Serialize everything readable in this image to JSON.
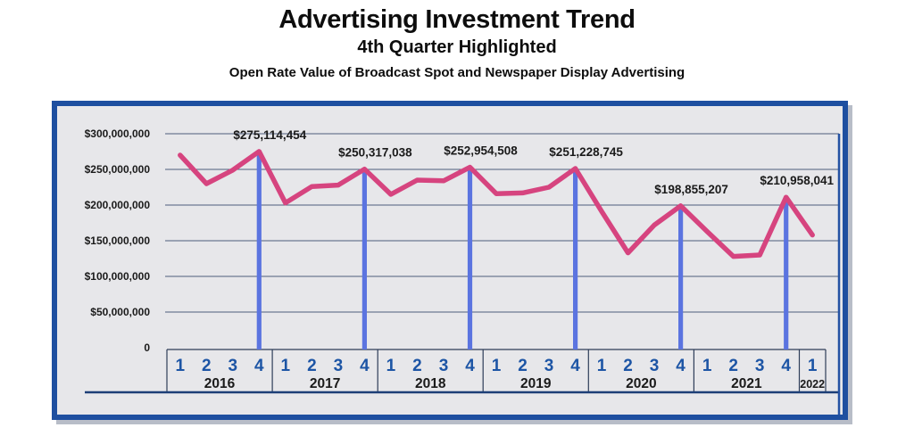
{
  "header": {
    "title": "Advertising Investment Trend",
    "subtitle": "4th Quarter Highlighted",
    "description": "Open Rate Value of Broadcast Spot and Newspaper Display Advertising"
  },
  "colors": {
    "line": "#d6447f",
    "q4_bar": "#5b74e0",
    "panel_border": "#1e4fa0",
    "panel_bg": "#e7e7ea",
    "gridline": "#4d5c7c",
    "axis_box_border": "#2e3d58",
    "baseline": "#1d3f77",
    "right_border": "#2452a3",
    "quarter_text": "#1d55a5",
    "year_text": "#1a1a1a",
    "tick_text": "#1a1a1a",
    "label_text": "#1a1a1a"
  },
  "chart_data": {
    "type": "line",
    "title": "Advertising Investment Trend",
    "subtitle": "4th Quarter Highlighted",
    "xlabel": "",
    "ylabel": "",
    "ylim": [
      0,
      300000000
    ],
    "grid": true,
    "legend": false,
    "highlighted_quarter": "4",
    "y_axis": {
      "ticks": [
        {
          "label": "$300,000,000",
          "value": 300000000
        },
        {
          "label": "$250,000,000",
          "value": 250000000
        },
        {
          "label": "$200,000,000",
          "value": 200000000
        },
        {
          "label": "$150,000,000",
          "value": 150000000
        },
        {
          "label": "$100,000,000",
          "value": 100000000
        },
        {
          "label": "$50,000,000",
          "value": 50000000
        },
        {
          "label": "0",
          "value": 0
        }
      ]
    },
    "x_groups": [
      {
        "year": "2016",
        "quarters": [
          "1",
          "2",
          "3",
          "4"
        ]
      },
      {
        "year": "2017",
        "quarters": [
          "1",
          "2",
          "3",
          "4"
        ]
      },
      {
        "year": "2018",
        "quarters": [
          "1",
          "2",
          "3",
          "4"
        ]
      },
      {
        "year": "2019",
        "quarters": [
          "1",
          "2",
          "3",
          "4"
        ]
      },
      {
        "year": "2020",
        "quarters": [
          "1",
          "2",
          "3",
          "4"
        ]
      },
      {
        "year": "2021",
        "quarters": [
          "1",
          "2",
          "3",
          "4"
        ]
      },
      {
        "year": "2022",
        "quarters": [
          "1"
        ]
      }
    ],
    "series": [
      {
        "name": "Open Rate Value of Broadcast Spot and Newspaper Display Advertising",
        "values_usd": [
          270000000,
          230000000,
          249000000,
          275114454,
          203000000,
          226000000,
          228000000,
          250317038,
          215000000,
          235000000,
          234000000,
          252954508,
          216000000,
          217000000,
          225000000,
          251228745,
          191000000,
          133000000,
          172000000,
          198855207,
          163000000,
          128000000,
          130000000,
          210958041,
          158000000
        ]
      }
    ],
    "q4_labels": [
      {
        "year": "2016",
        "index": 3,
        "label": "$275,114,454",
        "value": 275114454
      },
      {
        "year": "2017",
        "index": 7,
        "label": "$250,317,038",
        "value": 250317038
      },
      {
        "year": "2018",
        "index": 11,
        "label": "$252,954,508",
        "value": 252954508
      },
      {
        "year": "2019",
        "index": 15,
        "label": "$251,228,745",
        "value": 251228745
      },
      {
        "year": "2020",
        "index": 19,
        "label": "$198,855,207",
        "value": 198855207
      },
      {
        "year": "2021",
        "index": 23,
        "label": "$210,958,041",
        "value": 210958041
      }
    ]
  }
}
